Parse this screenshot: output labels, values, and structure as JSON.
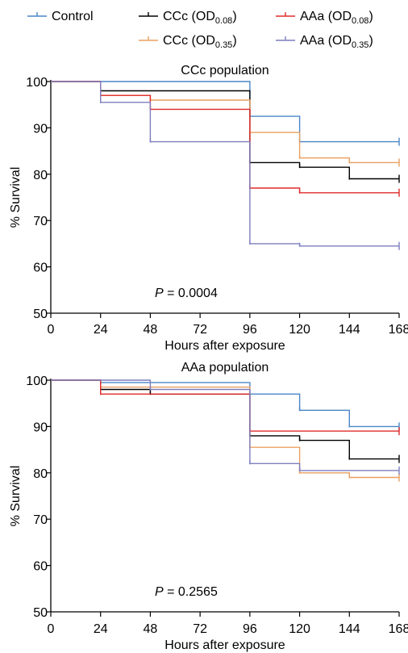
{
  "legend": {
    "items": [
      {
        "id": "control",
        "label": "Control",
        "color": "#4a86c8"
      },
      {
        "id": "cc008",
        "label": "CCc (OD",
        "sub": "0.08",
        "suffix": ")",
        "color": "#000000"
      },
      {
        "id": "aa008",
        "label": "AAa (OD",
        "sub": "0.08",
        "suffix": ")",
        "color": "#e02a2a"
      },
      {
        "id": "cc035",
        "label": "CCc (OD",
        "sub": "0.35",
        "suffix": ")",
        "color": "#eaa060"
      },
      {
        "id": "aa035",
        "label": "AAa (OD",
        "sub": "0.35",
        "suffix": ")",
        "color": "#7d7fbe"
      }
    ]
  },
  "chart_data": [
    {
      "type": "line",
      "step": "post",
      "title": "CCc population",
      "xlabel": "Hours after exposure",
      "ylabel": "% Survival",
      "xticks": [
        0,
        24,
        48,
        72,
        96,
        120,
        144,
        168
      ],
      "yticks": [
        50,
        60,
        70,
        80,
        90,
        100
      ],
      "xlim": [
        0,
        168
      ],
      "ylim": [
        50,
        100
      ],
      "annotation": {
        "italic": "P",
        "text": " = 0.0004"
      },
      "series": [
        {
          "id": "control",
          "x": [
            0,
            96,
            96,
            120,
            120,
            168
          ],
          "y": [
            100,
            100,
            92.5,
            92.5,
            87,
            87
          ]
        },
        {
          "id": "cc008",
          "x": [
            0,
            24,
            24,
            96,
            96,
            120,
            120,
            144,
            144,
            168
          ],
          "y": [
            100,
            100,
            98,
            98,
            82.5,
            82.5,
            81.5,
            81.5,
            79,
            79
          ]
        },
        {
          "id": "cc035",
          "x": [
            0,
            24,
            24,
            48,
            48,
            96,
            96,
            120,
            120,
            144,
            144,
            168
          ],
          "y": [
            100,
            100,
            97,
            97,
            96,
            96,
            89,
            89,
            83.5,
            83.5,
            82.5,
            82.5
          ]
        },
        {
          "id": "aa008",
          "x": [
            0,
            24,
            24,
            48,
            48,
            96,
            96,
            120,
            120,
            168
          ],
          "y": [
            100,
            100,
            97,
            97,
            94,
            94,
            77,
            77,
            76,
            76
          ]
        },
        {
          "id": "aa035",
          "x": [
            0,
            24,
            24,
            48,
            48,
            96,
            96,
            120,
            120,
            168
          ],
          "y": [
            100,
            100,
            95.5,
            95.5,
            87,
            87,
            65,
            65,
            64.5,
            64.5
          ]
        }
      ]
    },
    {
      "type": "line",
      "step": "post",
      "title": "AAa population",
      "xlabel": "Hours after exposure",
      "ylabel": "% Survival",
      "xticks": [
        0,
        24,
        48,
        72,
        96,
        120,
        144,
        168
      ],
      "yticks": [
        50,
        60,
        70,
        80,
        90,
        100
      ],
      "xlim": [
        0,
        168
      ],
      "ylim": [
        50,
        100
      ],
      "annotation": {
        "italic": "P",
        "text": " = 0.2565"
      },
      "series": [
        {
          "id": "control",
          "x": [
            0,
            24,
            24,
            96,
            96,
            120,
            120,
            144,
            144,
            168
          ],
          "y": [
            100,
            100,
            99.5,
            99.5,
            97,
            97,
            93.5,
            93.5,
            90,
            90
          ]
        },
        {
          "id": "cc008",
          "x": [
            0,
            24,
            24,
            48,
            48,
            96,
            96,
            120,
            120,
            144,
            144,
            168
          ],
          "y": [
            100,
            100,
            98,
            98,
            97,
            97,
            88,
            88,
            87,
            87,
            83,
            83
          ]
        },
        {
          "id": "cc035",
          "x": [
            0,
            24,
            24,
            96,
            96,
            120,
            120,
            144,
            144,
            168
          ],
          "y": [
            100,
            100,
            98.5,
            98.5,
            85.5,
            85.5,
            80,
            80,
            79,
            79
          ]
        },
        {
          "id": "aa008",
          "x": [
            0,
            24,
            24,
            96,
            96,
            168
          ],
          "y": [
            100,
            100,
            97,
            97,
            89,
            89
          ]
        },
        {
          "id": "aa035",
          "x": [
            0,
            48,
            48,
            96,
            96,
            120,
            120,
            168
          ],
          "y": [
            100,
            100,
            98,
            98,
            82,
            82,
            80.5,
            80.5
          ]
        }
      ]
    }
  ]
}
